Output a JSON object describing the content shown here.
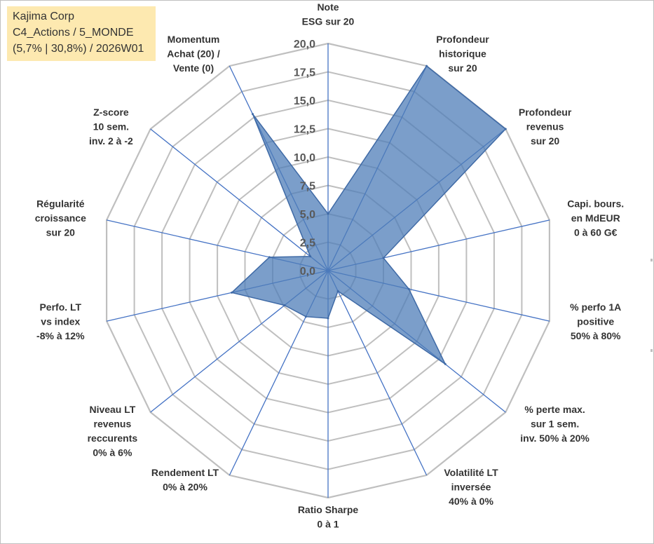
{
  "title_box": {
    "line1": "Kajima Corp",
    "line2": "C4_Actions / 5_MONDE",
    "line3": "(5,7% | 30,8%) / 2026W01"
  },
  "colors": {
    "fill": "#4f7db8",
    "stroke": "#3f6aa6",
    "axis": "#4472c4",
    "grid": "#bfbfbf",
    "title_bg": "#fde9b0"
  },
  "chart_data": {
    "type": "radar",
    "title": "",
    "rmin": 0,
    "rmax": 20,
    "tick_step": 2.5,
    "tick_labels": [
      "0,0",
      "2,5",
      "5,0",
      "7,5",
      "10,0",
      "12,5",
      "15,0",
      "17,5",
      "20,0"
    ],
    "axes": [
      {
        "label": [
          "Note",
          "ESG sur 20"
        ],
        "value": 5.0
      },
      {
        "label": [
          "Profondeur",
          "historique",
          "sur 20"
        ],
        "value": 20.0
      },
      {
        "label": [
          "Profondeur",
          "revenus",
          "sur 20"
        ],
        "value": 20.0
      },
      {
        "label": [
          "Capi. bours.",
          "en MdEUR",
          "0 à 60 G€"
        ],
        "value": 5.0
      },
      {
        "label": [
          "% perfo 1A",
          "positive",
          "50% à 80%"
        ],
        "value": 7.3
      },
      {
        "label": [
          "% perte max.",
          "sur 1 sem.",
          "inv. 50% à 20%"
        ],
        "value": 13.2
      },
      {
        "label": [
          "Volatilité LT",
          "inversée",
          "40% à 0%"
        ],
        "value": 2.0
      },
      {
        "label": [
          "Ratio Sharpe",
          "0 à 1"
        ],
        "value": 4.2
      },
      {
        "label": [
          "Rendement LT",
          "0% à 20%"
        ],
        "value": 4.5
      },
      {
        "label": [
          "Niveau LT",
          "revenus",
          "reccurents",
          "0% à 6%"
        ],
        "value": 4.9
      },
      {
        "label": [
          "Perfo. LT",
          "vs index",
          "-8% à 12%"
        ],
        "value": 8.7
      },
      {
        "label": [
          "Régularité",
          "croissance",
          "sur 20"
        ],
        "value": 5.3
      },
      {
        "label": [
          "Z-score",
          "10 sem.",
          "inv. 2 à -2"
        ],
        "value": 2.0
      },
      {
        "label": [
          "Momentum",
          "Achat (20) /",
          "Vente (0)"
        ],
        "value": 15.3
      }
    ],
    "grid": true,
    "legend": "none"
  }
}
